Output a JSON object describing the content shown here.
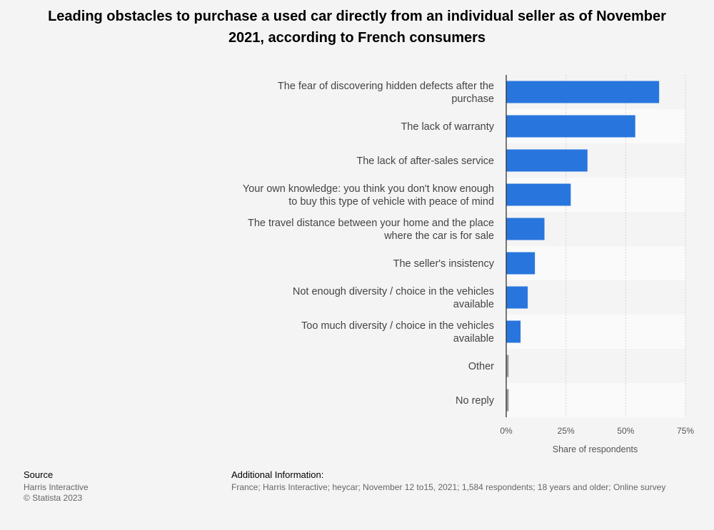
{
  "title": "Leading obstacles to purchase a used car directly from an individual seller as of November 2021, according to French consumers",
  "chart_data": {
    "type": "bar",
    "orientation": "horizontal",
    "title": "Leading obstacles to purchase a used car directly from an individual seller as of November 2021, according to French consumers",
    "xlabel": "Share of respondents",
    "ylabel": "",
    "xlim": [
      0,
      75
    ],
    "xticks": [
      "0%",
      "25%",
      "50%",
      "75%"
    ],
    "grid": true,
    "categories": [
      "The fear of discovering hidden defects after the purchase",
      "The lack of warranty",
      "The lack of after-sales service",
      "Your own knowledge: you think you don't know enough to buy this type of vehicle with peace of mind",
      "The travel distance between your home and the place where the car is for sale",
      "The seller's insistency",
      "Not enough diversity / choice in the vehicles available",
      "Too much diversity / choice in the vehicles available",
      "Other",
      "No reply"
    ],
    "values": [
      64,
      54,
      34,
      27,
      16,
      12,
      9,
      6,
      1,
      1
    ],
    "bar_color": "#2876dd",
    "minor_bar_color": "#999999"
  },
  "footer": {
    "source_heading": "Source",
    "source_lines": [
      "Harris Interactive",
      "© Statista 2023"
    ],
    "info_heading": "Additional Information:",
    "info_text": "France; Harris Interactive; heycar; November 12 to15, 2021; 1,584 respondents; 18 years and older; Online survey"
  }
}
